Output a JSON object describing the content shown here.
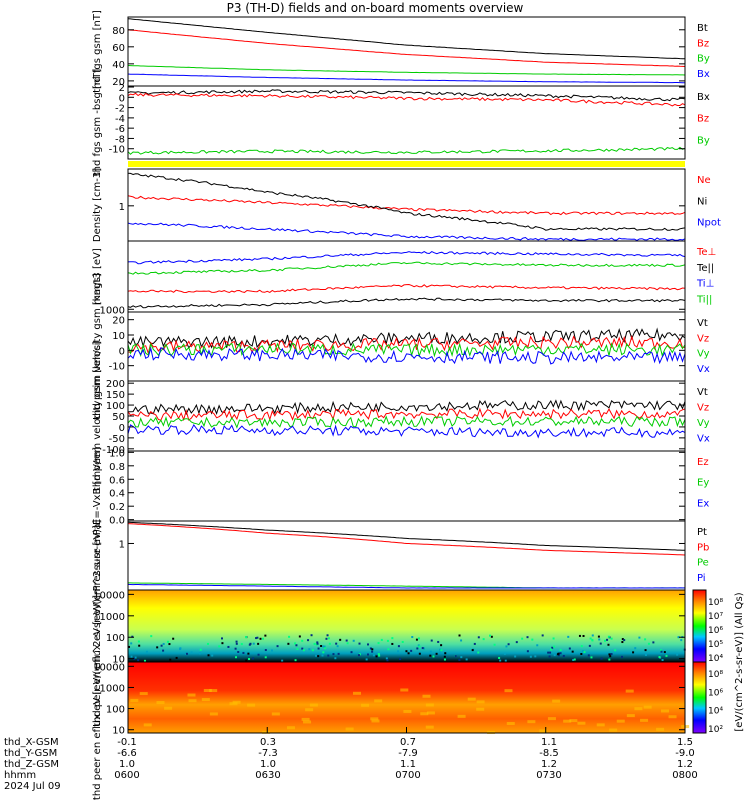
{
  "title": "P3 (TH-D) fields and on-board moments overview",
  "time_axis": {
    "row_labels": [
      "thd_X-GSM",
      "thd_Y-GSM",
      "thd_Z-GSM",
      "hhmm",
      "2024 Jul 09"
    ],
    "ticks": [
      {
        "x": "-0.1",
        "y": "-6.6",
        "z": "1.0",
        "t": "0600"
      },
      {
        "x": "0.3",
        "y": "-7.3",
        "z": "1.0",
        "t": "0630"
      },
      {
        "x": "0.7",
        "y": "-7.9",
        "z": "1.1",
        "t": "0700"
      },
      {
        "x": "1.1",
        "y": "-8.5",
        "z": "1.2",
        "t": "0730"
      },
      {
        "x": "1.5",
        "y": "-9.0",
        "z": "1.2",
        "t": "0800"
      }
    ]
  },
  "colorbar_label": "[eV/(cm^2-s-sr-eV)] (All Qs)",
  "colors": {
    "black": "#000000",
    "red": "#ff0000",
    "green": "#00cc00",
    "blue": "#0000ff",
    "yellow": "#ffff00"
  },
  "chart_data": [
    {
      "type": "line",
      "ylabel": "thd fgs gsm [nT]",
      "ylim": [
        14,
        95
      ],
      "yticks": [
        "20",
        "40",
        "60",
        "80"
      ],
      "ytick_values": [
        20,
        40,
        60,
        80
      ],
      "x": [
        0,
        0.25,
        0.5,
        0.75,
        1
      ],
      "series": [
        {
          "name": "Bt",
          "color": "#000000",
          "values": [
            93,
            77,
            62,
            52,
            46
          ]
        },
        {
          "name": "Bz",
          "color": "#ff0000",
          "values": [
            80,
            64,
            51,
            42,
            37
          ]
        },
        {
          "name": "By",
          "color": "#00cc00",
          "values": [
            38,
            33,
            30,
            28,
            27
          ]
        },
        {
          "name": "Bx",
          "color": "#0000ff",
          "values": [
            28,
            24,
            21,
            19,
            18
          ]
        }
      ]
    },
    {
      "type": "line",
      "ylabel": "thd fgs gsm -bsg [nT]",
      "ylim": [
        -12,
        2.2
      ],
      "yticks": [
        "2",
        "0",
        "-2",
        "-4",
        "-6",
        "-8",
        "-10"
      ],
      "ytick_values": [
        2,
        0,
        -2,
        -4,
        -6,
        -8,
        -10
      ],
      "x": [
        0,
        0.25,
        0.5,
        0.75,
        1
      ],
      "series": [
        {
          "name": "Bx",
          "color": "#000000",
          "values": [
            0.8,
            1.2,
            0.9,
            0.3,
            -0.5
          ]
        },
        {
          "name": "Bz",
          "color": "#ff0000",
          "values": [
            0.5,
            0.3,
            -0.2,
            -0.5,
            -1.5
          ]
        },
        {
          "name": "By",
          "color": "#00cc00",
          "values": [
            -10.8,
            -10.5,
            -10.7,
            -10.4,
            -10.0
          ]
        }
      ]
    },
    {
      "type": "line",
      "ylabel": "Density [cm-3]",
      "scale": "log",
      "ylim": [
        0.35,
        3.0
      ],
      "yticks": [
        "1"
      ],
      "ytick_values": [
        1
      ],
      "x": [
        0,
        0.25,
        0.5,
        0.75,
        1
      ],
      "series": [
        {
          "name": "Ne",
          "color": "#ff0000",
          "values": [
            1.3,
            1.1,
            0.9,
            0.8,
            0.8
          ]
        },
        {
          "name": "Ni",
          "color": "#000000",
          "values": [
            2.6,
            1.5,
            0.8,
            0.5,
            0.5
          ]
        },
        {
          "name": "Npot",
          "color": "#0000ff",
          "values": [
            0.6,
            0.5,
            0.4,
            0.37,
            0.37
          ]
        }
      ]
    },
    {
      "type": "line",
      "ylabel": "magt3 [eV]",
      "scale": "log",
      "ylim": [
        900,
        14000
      ],
      "yticks": [
        "1000"
      ],
      "ytick_values": [
        1000
      ],
      "x": [
        0,
        0.25,
        0.5,
        0.75,
        1
      ],
      "series": [
        {
          "name": "Te⊥",
          "color": "#ff0000",
          "values": [
            2000,
            2000,
            2500,
            2300,
            2200
          ]
        },
        {
          "name": "Te||",
          "color": "#000000",
          "values": [
            1100,
            1200,
            1500,
            1400,
            1400
          ]
        },
        {
          "name": "Ti⊥",
          "color": "#0000ff",
          "values": [
            6000,
            7000,
            9000,
            8500,
            8000
          ]
        },
        {
          "name": "Ti||",
          "color": "#00cc00",
          "values": [
            4000,
            4500,
            6000,
            5500,
            5500
          ]
        }
      ]
    },
    {
      "type": "line",
      "ylabel": "thd peim velocity gsm [km/s]",
      "ylim": [
        -20,
        25
      ],
      "yticks": [
        "20",
        "10",
        "0",
        "-10"
      ],
      "ytick_values": [
        20,
        10,
        0,
        -10
      ],
      "x": [
        0,
        0.25,
        0.5,
        0.75,
        1
      ],
      "series": [
        {
          "name": "Vt",
          "color": "#000000",
          "values": [
            5,
            6,
            8,
            9,
            10
          ]
        },
        {
          "name": "Vz",
          "color": "#ff0000",
          "values": [
            2,
            3,
            4,
            5,
            5
          ]
        },
        {
          "name": "Vy",
          "color": "#00cc00",
          "values": [
            0,
            1,
            0,
            1,
            0
          ]
        },
        {
          "name": "Vx",
          "color": "#0000ff",
          "values": [
            -2,
            -3,
            -4,
            -5,
            -5
          ]
        }
      ]
    },
    {
      "type": "line",
      "ylabel": "thd peem velocity gsm [km/s]",
      "ylim": [
        -110,
        210
      ],
      "yticks": [
        "200",
        "150",
        "100",
        "50",
        "0",
        "-50",
        "-100"
      ],
      "ytick_values": [
        200,
        150,
        100,
        50,
        0,
        -50,
        -100
      ],
      "x": [
        0,
        0.25,
        0.5,
        0.75,
        1
      ],
      "series": [
        {
          "name": "Vt",
          "color": "#000000",
          "values": [
            80,
            85,
            95,
            100,
            100
          ]
        },
        {
          "name": "Vz",
          "color": "#ff0000",
          "values": [
            50,
            55,
            60,
            60,
            60
          ]
        },
        {
          "name": "Vy",
          "color": "#00cc00",
          "values": [
            20,
            20,
            25,
            25,
            25
          ]
        },
        {
          "name": "Vx",
          "color": "#0000ff",
          "values": [
            -10,
            -15,
            -20,
            -25,
            -25
          ]
        }
      ]
    },
    {
      "type": "line",
      "ylabel": "E=-VxB [mV/m]",
      "ylim": [
        -0.02,
        1.02
      ],
      "yticks": [
        "1.0",
        "0.8",
        "0.6",
        "0.4",
        "0.2",
        "0.0"
      ],
      "ytick_values": [
        1.0,
        0.8,
        0.6,
        0.4,
        0.2,
        0.0
      ],
      "x": [],
      "series": [
        {
          "name": "Ez",
          "color": "#ff0000",
          "values": []
        },
        {
          "name": "Ey",
          "color": "#00cc00",
          "values": []
        },
        {
          "name": "Ex",
          "color": "#0000ff",
          "values": []
        }
      ]
    },
    {
      "type": "line",
      "ylabel": "Pressure [nPa]",
      "scale": "log",
      "ylim": [
        0.09,
        3.2
      ],
      "yticks": [
        "1"
      ],
      "ytick_values": [
        1
      ],
      "x": [
        0,
        0.25,
        0.5,
        0.75,
        1
      ],
      "series": [
        {
          "name": "Pt",
          "color": "#000000",
          "values": [
            3.0,
            2.0,
            1.3,
            0.9,
            0.7
          ]
        },
        {
          "name": "Pb",
          "color": "#ff0000",
          "values": [
            2.8,
            1.7,
            1.0,
            0.7,
            0.55
          ]
        },
        {
          "name": "Pe",
          "color": "#00cc00",
          "values": [
            0.13,
            0.12,
            0.11,
            0.1,
            0.1
          ]
        },
        {
          "name": "Pi",
          "color": "#0000ff",
          "values": [
            0.12,
            0.11,
            0.1,
            0.1,
            0.1
          ]
        }
      ]
    },
    {
      "type": "heatmap",
      "ylabel": "thd peir en eflux eV [eV/(cm^2-s-sr-eV)]",
      "scale": "log",
      "ylim": [
        7,
        16000
      ],
      "yticks": [
        "10000",
        "1000",
        "100",
        "10"
      ],
      "ytick_values": [
        10000,
        1000,
        100,
        10
      ]
    },
    {
      "type": "heatmap",
      "ylabel": "thd peer en eflux eV [eV/(cm^2-s-sr-eV)]",
      "scale": "log",
      "ylim": [
        7,
        16000
      ],
      "yticks": [
        "10000",
        "1000",
        "100",
        "10"
      ],
      "ytick_values": [
        10000,
        1000,
        100,
        10
      ]
    }
  ],
  "colorbars": [
    {
      "ticks": [
        "10⁸",
        "10⁷",
        "10⁶",
        "10⁵",
        "10⁴"
      ]
    },
    {
      "ticks": [
        "10⁸",
        "10⁶",
        "10⁴",
        "10²"
      ]
    }
  ]
}
